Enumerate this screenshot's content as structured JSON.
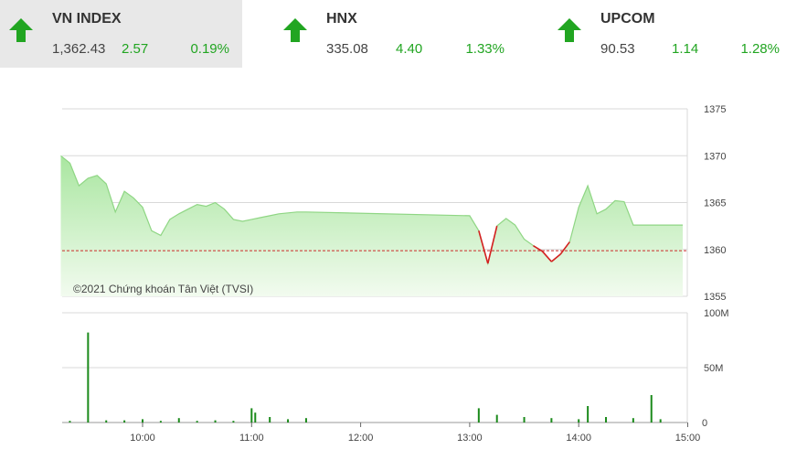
{
  "tickers": [
    {
      "name": "VN INDEX",
      "price": "1,362.43",
      "change": "2.57",
      "pct": "0.19%",
      "direction": "up",
      "active": true
    },
    {
      "name": "HNX",
      "price": "335.08",
      "change": "4.40",
      "pct": "1.33%",
      "direction": "up",
      "active": false
    },
    {
      "name": "UPCOM",
      "price": "90.53",
      "change": "1.14",
      "pct": "1.28%",
      "direction": "up",
      "active": false
    }
  ],
  "colors": {
    "up": "#21a521",
    "down": "#d42020",
    "reference": "#cc2a2a",
    "area_top": "#a9e6a0",
    "area_bottom": "#f2fbef",
    "line": "#8fd684",
    "volume": "#1b8a1b",
    "grid": "#d9d9d9"
  },
  "watermark": "©2021 Chứng khoán Tân Việt (TVSI)",
  "chart_data": [
    {
      "type": "area",
      "series_label": "VN INDEX intraday",
      "reference_value": 1359.86,
      "y_ticks": [
        "1375",
        "1370",
        "1365",
        "1360",
        "1355"
      ],
      "ylim": [
        1355,
        1375
      ],
      "x": [
        "09:15",
        "09:20",
        "09:25",
        "09:30",
        "09:35",
        "09:40",
        "09:45",
        "09:50",
        "09:55",
        "10:00",
        "10:05",
        "10:10",
        "10:15",
        "10:20",
        "10:25",
        "10:30",
        "10:35",
        "10:40",
        "10:45",
        "10:50",
        "10:55",
        "11:00",
        "11:05",
        "11:10",
        "11:15",
        "11:20",
        "11:25",
        "11:30",
        "13:00",
        "13:05",
        "13:10",
        "13:15",
        "13:20",
        "13:25",
        "13:30",
        "13:35",
        "13:40",
        "13:45",
        "13:50",
        "13:55",
        "14:00",
        "14:05",
        "14:10",
        "14:15",
        "14:20",
        "14:25",
        "14:30",
        "14:35",
        "14:40",
        "14:45"
      ],
      "values": [
        1370.0,
        1369.2,
        1366.8,
        1367.6,
        1367.9,
        1367.0,
        1364.0,
        1366.2,
        1365.5,
        1364.5,
        1362.0,
        1361.5,
        1363.2,
        1363.8,
        1364.3,
        1364.8,
        1364.6,
        1365.0,
        1364.3,
        1363.2,
        1363.0,
        1363.2,
        1363.4,
        1363.6,
        1363.8,
        1363.9,
        1364.0,
        1364.0,
        1363.6,
        1362.0,
        1358.5,
        1362.5,
        1363.3,
        1362.6,
        1361.1,
        1360.4,
        1359.8,
        1358.7,
        1359.5,
        1360.8,
        1364.5,
        1366.8,
        1363.8,
        1364.3,
        1365.2,
        1365.1,
        1362.6,
        1362.6,
        1362.6,
        1362.6
      ]
    },
    {
      "type": "bar",
      "series_label": "Volume",
      "y_ticks": [
        "100M",
        "50M",
        "0"
      ],
      "ylim": [
        0,
        100
      ],
      "x_ticks": [
        "10:00",
        "11:00",
        "12:00",
        "13:00",
        "14:00",
        "15:00"
      ],
      "x": [
        "09:20",
        "09:30",
        "09:40",
        "09:50",
        "10:00",
        "10:10",
        "10:20",
        "10:30",
        "10:40",
        "10:50",
        "11:00",
        "11:02",
        "11:10",
        "11:20",
        "11:30",
        "13:05",
        "13:15",
        "13:30",
        "13:45",
        "14:00",
        "14:05",
        "14:15",
        "14:30",
        "14:40",
        "14:45"
      ],
      "values": [
        1.5,
        82,
        2,
        2,
        3,
        1.5,
        4,
        1.5,
        2,
        1.5,
        13,
        9,
        5,
        3,
        4,
        13,
        7,
        5,
        4,
        3,
        15,
        5,
        4,
        25,
        3
      ]
    }
  ]
}
